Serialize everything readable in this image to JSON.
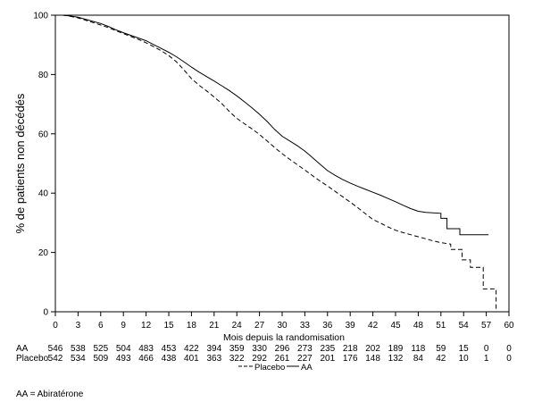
{
  "chart_data": {
    "type": "line",
    "xlabel": "Mois depuis la randomisation",
    "ylabel": "% de patients non décédés",
    "xlim": [
      0,
      60
    ],
    "ylim": [
      0,
      100
    ],
    "xticks": [
      0,
      3,
      6,
      9,
      12,
      15,
      18,
      21,
      24,
      27,
      30,
      33,
      36,
      39,
      42,
      45,
      48,
      51,
      54,
      57,
      60
    ],
    "yticks": [
      0,
      20,
      40,
      60,
      80,
      100
    ],
    "grid": false,
    "legend_position": "bottom",
    "series": [
      {
        "name": "Placebo",
        "dashed": true,
        "color": "#000000",
        "points": [
          [
            0,
            100
          ],
          [
            1,
            100
          ],
          [
            2,
            99.6
          ],
          [
            3,
            99.1
          ],
          [
            4,
            98.3
          ],
          [
            5,
            97.5
          ],
          [
            6,
            96.7
          ],
          [
            7,
            95.8
          ],
          [
            8,
            94.8
          ],
          [
            9,
            93.8
          ],
          [
            10,
            92.8
          ],
          [
            11,
            91.8
          ],
          [
            12,
            90.7
          ],
          [
            13,
            89.4
          ],
          [
            14,
            88
          ],
          [
            15,
            86.4
          ],
          [
            16,
            84.3
          ],
          [
            17,
            81.6
          ],
          [
            18,
            78.6
          ],
          [
            19,
            76.4
          ],
          [
            20,
            74.5
          ],
          [
            21,
            72.4
          ],
          [
            22,
            70.2
          ],
          [
            23,
            67.6
          ],
          [
            24,
            65.2
          ],
          [
            25,
            63.4
          ],
          [
            26,
            61.7
          ],
          [
            27,
            59.8
          ],
          [
            28,
            57.6
          ],
          [
            29,
            55.4
          ],
          [
            30,
            53.3
          ],
          [
            31,
            51.4
          ],
          [
            32,
            49.6
          ],
          [
            33,
            47.8
          ],
          [
            34,
            45.9
          ],
          [
            35,
            44.1
          ],
          [
            36,
            42.4
          ],
          [
            37,
            40.6
          ],
          [
            38,
            38.8
          ],
          [
            39,
            37
          ],
          [
            40,
            35.1
          ],
          [
            41,
            33.1
          ],
          [
            42,
            31.1
          ],
          [
            43,
            29.9
          ],
          [
            44,
            28.6
          ],
          [
            45,
            27.5
          ],
          [
            46,
            26.7
          ],
          [
            47,
            26
          ],
          [
            48,
            25.3
          ],
          [
            49,
            24.6
          ],
          [
            50,
            23.9
          ],
          [
            51,
            23.3
          ],
          [
            52.3,
            22.8
          ],
          [
            52.3,
            21
          ],
          [
            53.8,
            21
          ],
          [
            53.8,
            17.5
          ],
          [
            54.9,
            17.5
          ],
          [
            54.9,
            15
          ],
          [
            56.6,
            15
          ],
          [
            56.6,
            7.7
          ],
          [
            58.3,
            7.7
          ],
          [
            58.3,
            0
          ]
        ]
      },
      {
        "name": "AA",
        "dashed": false,
        "color": "#000000",
        "points": [
          [
            0,
            100
          ],
          [
            1,
            100
          ],
          [
            2,
            99.7
          ],
          [
            3,
            99.3
          ],
          [
            4,
            98.6
          ],
          [
            5,
            97.9
          ],
          [
            6,
            97.2
          ],
          [
            7,
            96.2
          ],
          [
            8,
            95.1
          ],
          [
            9,
            94.1
          ],
          [
            10,
            93.2
          ],
          [
            11,
            92.3
          ],
          [
            12,
            91.4
          ],
          [
            13,
            90.1
          ],
          [
            14,
            88.8
          ],
          [
            15,
            87.5
          ],
          [
            16,
            86
          ],
          [
            17,
            84.3
          ],
          [
            18,
            82.5
          ],
          [
            19,
            80.8
          ],
          [
            20,
            79.3
          ],
          [
            21,
            77.8
          ],
          [
            22,
            76.2
          ],
          [
            23,
            74.6
          ],
          [
            24,
            72.8
          ],
          [
            25,
            70.8
          ],
          [
            26,
            68.8
          ],
          [
            27,
            66.6
          ],
          [
            28,
            64.2
          ],
          [
            29,
            61.5
          ],
          [
            30,
            59.2
          ],
          [
            31,
            57.6
          ],
          [
            32,
            56
          ],
          [
            33,
            54.2
          ],
          [
            34,
            52
          ],
          [
            35,
            49.8
          ],
          [
            36,
            47.6
          ],
          [
            37,
            46
          ],
          [
            38,
            44.6
          ],
          [
            39,
            43.4
          ],
          [
            40,
            42.3
          ],
          [
            41,
            41.3
          ],
          [
            42,
            40.3
          ],
          [
            43,
            39.3
          ],
          [
            44,
            38.2
          ],
          [
            45,
            37.1
          ],
          [
            46,
            35.9
          ],
          [
            47,
            34.8
          ],
          [
            48,
            33.9
          ],
          [
            49,
            33.5
          ],
          [
            51,
            33.2
          ],
          [
            51,
            31.5
          ],
          [
            51.8,
            31.5
          ],
          [
            51.8,
            28
          ],
          [
            53.5,
            28
          ],
          [
            53.5,
            26
          ],
          [
            57.3,
            26
          ]
        ]
      }
    ]
  },
  "risk_table": {
    "rows": [
      {
        "label": "AA",
        "values": [
          546,
          538,
          525,
          504,
          483,
          453,
          422,
          394,
          359,
          330,
          296,
          273,
          235,
          218,
          202,
          189,
          118,
          59,
          15,
          0,
          0
        ]
      },
      {
        "label": "Placebo",
        "values": [
          542,
          534,
          509,
          493,
          466,
          438,
          401,
          363,
          322,
          292,
          261,
          227,
          201,
          176,
          148,
          132,
          84,
          42,
          10,
          1,
          0
        ]
      }
    ]
  },
  "footnote": "AA = Abiratérone"
}
